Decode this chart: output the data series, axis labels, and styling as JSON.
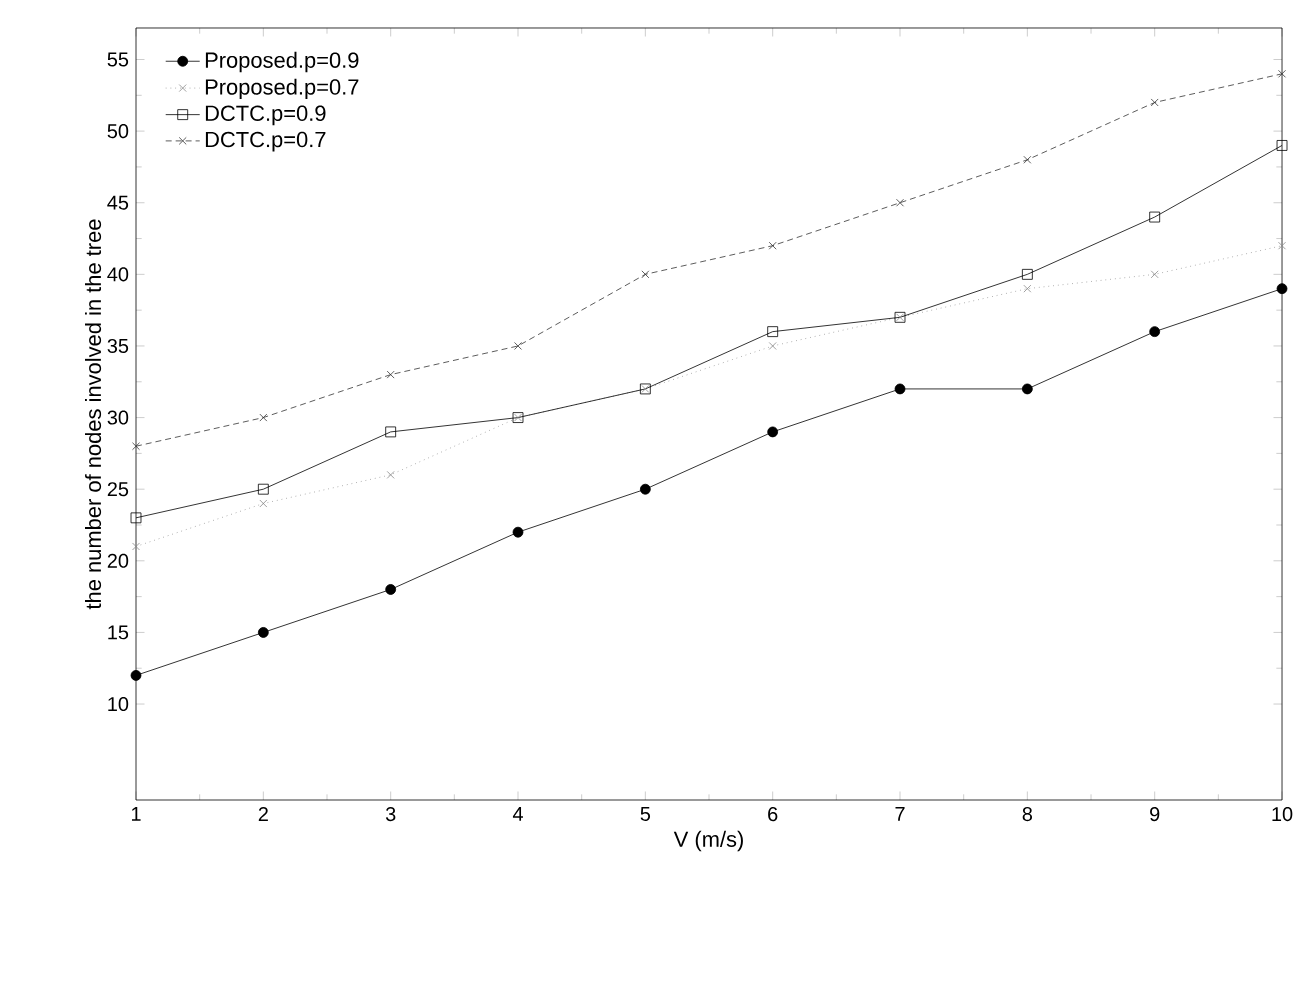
{
  "chart_data": {
    "type": "line",
    "xlabel": "V (m/s)",
    "ylabel": "the number of nodes involved in the tree",
    "x": [
      1,
      2,
      3,
      4,
      5,
      6,
      7,
      8,
      9,
      10
    ],
    "xlim": [
      1,
      10
    ],
    "xticks": [
      1,
      2,
      3,
      4,
      5,
      6,
      7,
      8,
      9,
      10
    ],
    "ylim": [
      3.3,
      57.2
    ],
    "yticks": [
      10,
      15,
      20,
      25,
      30,
      35,
      40,
      45,
      50,
      55
    ],
    "grid": false,
    "legend": "top left",
    "series": [
      {
        "name": "Proposed.p=0.9",
        "color": "#000000",
        "marker": "circle",
        "line_style": "solid",
        "values": [
          12,
          15,
          18,
          22,
          25,
          29,
          32,
          32,
          36,
          39
        ]
      },
      {
        "name": "Proposed.p=0.7",
        "color": "#888888",
        "marker": "cross",
        "line_style": "dotted",
        "values": [
          21,
          24,
          26,
          30,
          32,
          35,
          37,
          39,
          40,
          42
        ]
      },
      {
        "name": "DCTC.p=0.9",
        "color": "#000000",
        "marker": "square",
        "line_style": "solid",
        "values": [
          23,
          25,
          29,
          30,
          32,
          36,
          37,
          40,
          44,
          49
        ]
      },
      {
        "name": "DCTC.p=0.7",
        "color": "#333333",
        "marker": "cross",
        "line_style": "dashed",
        "values": [
          28,
          30,
          33,
          35,
          40,
          42,
          45,
          48,
          52,
          54
        ]
      }
    ]
  }
}
